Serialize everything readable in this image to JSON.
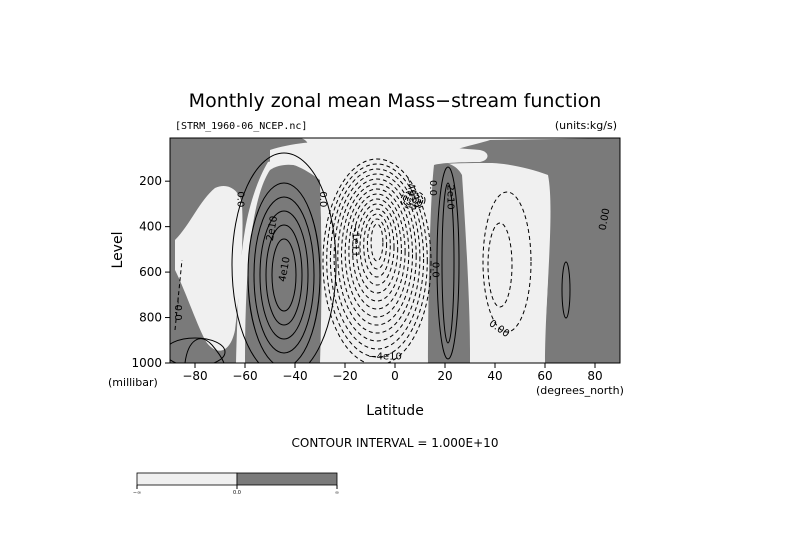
{
  "chart_data": {
    "type": "contour",
    "title": "Monthly zonal mean Mass−stream function",
    "file_label": "[STRM_1960-06_NCEP.nc]",
    "units_label": "(units:kg/s)",
    "xlabel": "Latitude",
    "x_unit": "(degrees_north)",
    "ylabel": "Level",
    "y_unit": "(millibar)",
    "xlim": [
      -90,
      90
    ],
    "ylim": [
      1000,
      10
    ],
    "x_ticks": [
      -80,
      -60,
      -40,
      -20,
      0,
      20,
      40,
      60,
      80
    ],
    "x_tick_labels": [
      "−80",
      "−60",
      "−40",
      "−20",
      "0",
      "20",
      "40",
      "60",
      "80"
    ],
    "y_ticks": [
      200,
      400,
      600,
      800,
      1000
    ],
    "y_tick_labels": [
      "200",
      "400",
      "600",
      "800",
      "1000"
    ],
    "contour_interval": 10000000000.0,
    "contour_interval_label": "CONTOUR INTERVAL = 1.000E+10",
    "fill": {
      "negative": "#f0f0f0",
      "positive": "#7a7a7a"
    },
    "contour_labels": [
      {
        "text": "0.0",
        "x": -63,
        "y": 280,
        "rotate": 90
      },
      {
        "text": "2e10",
        "x": -48,
        "y": 410,
        "rotate": -80
      },
      {
        "text": "4e10",
        "x": -43,
        "y": 590,
        "rotate": -80
      },
      {
        "text": "0.0",
        "x": -30,
        "y": 280,
        "rotate": 90
      },
      {
        "text": "−1e11",
        "x": -17,
        "y": 460,
        "rotate": 90
      },
      {
        "text": "−4e10",
        "x": 6,
        "y": 250,
        "rotate": 70
      },
      {
        "text": "0.0",
        "x": 14,
        "y": 230,
        "rotate": 90
      },
      {
        "text": "2e10",
        "x": 21,
        "y": 270,
        "rotate": 90
      },
      {
        "text": "0.0",
        "x": 15,
        "y": 590,
        "rotate": 90
      },
      {
        "text": "−4e10",
        "x": -4,
        "y": 985,
        "rotate": 0
      },
      {
        "text": "0.00",
        "x": 41,
        "y": 860,
        "rotate": 35
      },
      {
        "text": "0.00",
        "x": 85,
        "y": 370,
        "rotate": -80
      },
      {
        "text": "−0.0",
        "x": -88,
        "y": 760,
        "rotate": 90
      }
    ],
    "colorbar": {
      "labels": [
        "−∞",
        "0.0",
        "∞"
      ]
    }
  }
}
